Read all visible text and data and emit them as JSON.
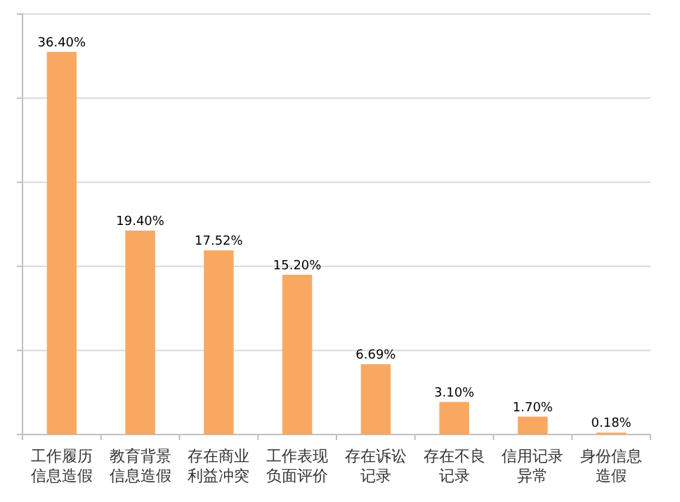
{
  "chart_data": {
    "type": "bar",
    "categories": [
      "工作履历信息造假",
      "教育背景信息造假",
      "存在商业利益冲突",
      "工作表现负面评价",
      "存在诉讼记录",
      "存在不良记录",
      "信用记录异常",
      "身份信息造假"
    ],
    "values": [
      36.4,
      19.4,
      17.52,
      15.2,
      6.69,
      3.1,
      1.7,
      0.18
    ],
    "value_labels": [
      "36.40%",
      "19.40%",
      "17.52%",
      "15.20%",
      "6.69%",
      "3.10%",
      "1.70%",
      "0.18%"
    ],
    "color": "#f9a862",
    "ylim": [
      0,
      40
    ],
    "yticks": [
      {
        "value": 0,
        "label": null
      },
      {
        "value": 8,
        "label": null
      },
      {
        "value": 16,
        "label": null
      },
      {
        "value": 24,
        "label": null
      },
      {
        "value": 32,
        "label": null
      },
      {
        "value": 40,
        "label": null
      }
    ],
    "grid": "y",
    "tick_labels": "x"
  }
}
